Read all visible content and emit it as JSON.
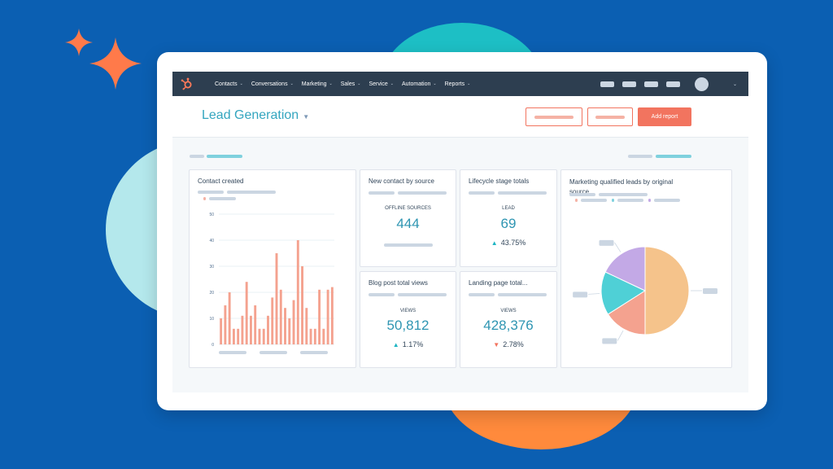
{
  "colors": {
    "background": "#0b5fb2",
    "navbar": "#2d3e50",
    "accent_teal": "#2e95b2",
    "accent_orange": "#f2745f",
    "bar_fill": "#f4a28f"
  },
  "navbar": {
    "logo_icon": "hubspot-sprocket-icon",
    "items": [
      {
        "label": "Contacts"
      },
      {
        "label": "Conversations"
      },
      {
        "label": "Marketing"
      },
      {
        "label": "Sales"
      },
      {
        "label": "Service"
      },
      {
        "label": "Automation"
      },
      {
        "label": "Reports"
      }
    ]
  },
  "header": {
    "title": "Lead Generation",
    "add_report_label": "Add report"
  },
  "cards": {
    "contact_created": {
      "title": "Contact created"
    },
    "new_contact_by_source": {
      "title": "New contact by source",
      "label": "OFFLINE SOURCES",
      "value": "444"
    },
    "lifecycle_stage_totals": {
      "title": "Lifecycle stage totals",
      "label": "LEAD",
      "value": "69",
      "change": "43.75%",
      "direction": "up"
    },
    "blog_post_total_views": {
      "title": "Blog post total views",
      "label": "VIEWS",
      "value": "50,812",
      "change": "1.17%",
      "direction": "up"
    },
    "landing_page_total": {
      "title": "Landing page total...",
      "label": "VIEWS",
      "value": "428,376",
      "change": "2.78%",
      "direction": "down"
    },
    "mql_by_source": {
      "title_line1": "Marketing qualified leads by original",
      "title_line2": "source"
    }
  },
  "chart_data": [
    {
      "type": "bar",
      "title": "Contact created",
      "ylim": [
        0,
        50
      ],
      "yticks": [
        "0",
        "10",
        "20",
        "30",
        "40",
        "50"
      ],
      "values": [
        10,
        15,
        20,
        6,
        6,
        11,
        24,
        11,
        15,
        6,
        6,
        11,
        18,
        35,
        21,
        14,
        10,
        17,
        40,
        30,
        14,
        6,
        6,
        21,
        6,
        21,
        22
      ]
    },
    {
      "type": "pie",
      "title": "Marketing qualified leads by original source",
      "values": [
        50,
        16,
        16,
        18
      ],
      "colors": [
        "#f5c38b",
        "#f4a28f",
        "#4fd0d6",
        "#c3a9e6"
      ]
    }
  ]
}
